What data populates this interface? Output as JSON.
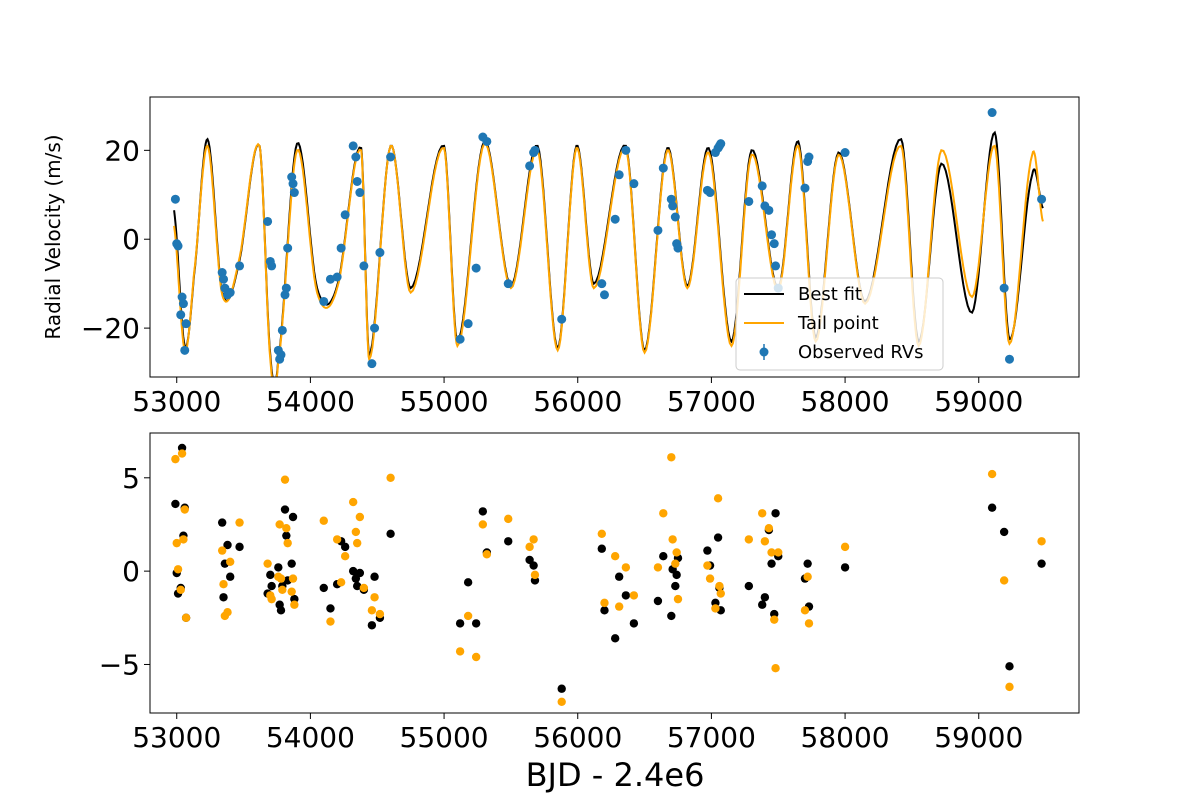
{
  "colors": {
    "best_fit": "#000000",
    "tail_point": "#ffa500",
    "observed": "#1f77b4",
    "residual_best": "#000000",
    "residual_tail": "#ffa500"
  },
  "chart_data": [
    {
      "type": "line",
      "panel": "top",
      "title": "",
      "xlabel": "",
      "ylabel": "Radial Velocity (m/s)",
      "xlim": [
        52800,
        59750
      ],
      "ylim": [
        -31,
        32
      ],
      "xticks": [
        53000,
        54000,
        55000,
        56000,
        57000,
        58000,
        59000
      ],
      "xtick_labels": [
        "53000",
        "54000",
        "55000",
        "56000",
        "57000",
        "58000",
        "59000"
      ],
      "yticks": [
        -20,
        0,
        20
      ],
      "ytick_labels": [
        "−20",
        "0",
        "20"
      ],
      "legend": {
        "position": "lower-right",
        "entries": [
          "Best fit",
          "Tail point",
          "Observed RVs"
        ]
      },
      "series": [
        {
          "name": "Best fit",
          "kind": "line",
          "x": [
            52980,
            53060,
            53130,
            53230,
            53340,
            53460,
            53620,
            53700,
            53760,
            53900,
            54050,
            54200,
            54380,
            54440,
            54600,
            54750,
            55000,
            55100,
            55300,
            55500,
            55700,
            55850,
            55990,
            56120,
            56360,
            56500,
            56670,
            56820,
            56980,
            57150,
            57300,
            57500,
            57650,
            57780,
            57950,
            58150,
            58420,
            58550,
            58720,
            58950,
            59120,
            59230,
            59400,
            59480
          ],
          "y": [
            6.5,
            -24,
            -8,
            22.5,
            -12,
            -6,
            21,
            -26,
            -27,
            21.5,
            -11,
            -10.5,
            20.5,
            -26,
            21,
            -11,
            21,
            -23,
            22,
            -10.5,
            21,
            -24.5,
            21,
            -10,
            21,
            -25,
            20.5,
            -10.5,
            20.5,
            -23,
            20,
            -11,
            22,
            -22,
            19.5,
            -14,
            22.5,
            -23,
            17,
            -16.5,
            24,
            -22.5,
            14.5,
            7
          ]
        },
        {
          "name": "Tail point",
          "kind": "line",
          "x": [
            52980,
            53060,
            53130,
            53230,
            53340,
            53460,
            53620,
            53700,
            53760,
            53900,
            54050,
            54200,
            54380,
            54440,
            54600,
            54750,
            55000,
            55100,
            55300,
            55500,
            55700,
            55850,
            55990,
            56120,
            56360,
            56500,
            56670,
            56820,
            56980,
            57150,
            57300,
            57500,
            57650,
            57780,
            57950,
            58150,
            58420,
            58550,
            58720,
            58950,
            59120,
            59230,
            59400,
            59480
          ],
          "y": [
            3,
            -25,
            -7.5,
            21,
            -12.5,
            -5.5,
            21,
            -27,
            -27.5,
            20,
            -12,
            -11,
            20,
            -27,
            21,
            -12,
            20.5,
            -24,
            21.5,
            -11,
            20,
            -25,
            20.5,
            -11,
            20.5,
            -25.5,
            20,
            -11,
            19.5,
            -24,
            19,
            -11.5,
            21,
            -23,
            19,
            -14.5,
            21,
            -24,
            20,
            -13,
            21,
            -23.5,
            19,
            4
          ]
        },
        {
          "name": "Observed RVs",
          "kind": "scatter",
          "x": [
            52990,
            53000,
            53010,
            53030,
            53040,
            53050,
            53060,
            53070,
            53340,
            53350,
            53360,
            53380,
            53400,
            53470,
            53680,
            53700,
            53710,
            53760,
            53770,
            53780,
            53790,
            53810,
            53820,
            53830,
            53860,
            53870,
            53880,
            54100,
            54150,
            54200,
            54230,
            54260,
            54320,
            54340,
            54350,
            54370,
            54400,
            54460,
            54480,
            54520,
            54600,
            55120,
            55180,
            55240,
            55290,
            55320,
            55480,
            55640,
            55670,
            55680,
            55880,
            56180,
            56200,
            56280,
            56310,
            56360,
            56420,
            56600,
            56640,
            56700,
            56710,
            56730,
            56740,
            56750,
            56970,
            56990,
            57030,
            57050,
            57060,
            57070,
            57280,
            57380,
            57400,
            57430,
            57450,
            57470,
            57480,
            57500,
            57700,
            57720,
            57730,
            58000,
            59100,
            59190,
            59230,
            59470
          ],
          "y": [
            9,
            -1,
            -1.5,
            -17,
            -13,
            -14.5,
            -25,
            -19,
            -7.5,
            -9,
            -11,
            -12.5,
            -12,
            -6,
            4,
            -5,
            -6,
            -25,
            -27,
            -26,
            -20.5,
            -12.5,
            -11,
            -2,
            14,
            12.5,
            10.5,
            -14,
            -9,
            -8.5,
            -2,
            5.5,
            21,
            18.5,
            13,
            10.5,
            -6,
            -28,
            -20,
            -3,
            18.5,
            -22.5,
            -19,
            -6.5,
            23,
            22,
            -10,
            16.5,
            19.5,
            20,
            -18,
            -10,
            -12.5,
            4.5,
            14.5,
            20,
            12.5,
            2,
            16,
            9,
            7.5,
            5,
            -1,
            -2,
            11,
            10.5,
            19.5,
            20.5,
            21,
            21.5,
            8.5,
            12,
            7.5,
            6.5,
            1,
            -1,
            -6,
            -11,
            11.5,
            17.5,
            18.5,
            19.5,
            28.5,
            -11,
            -27,
            9
          ]
        }
      ]
    },
    {
      "type": "scatter",
      "panel": "bottom",
      "title": "",
      "xlabel": "BJD - 2.4e6",
      "ylabel": "",
      "xlim": [
        52800,
        59750
      ],
      "ylim": [
        -7.6,
        7.4
      ],
      "xticks": [
        53000,
        54000,
        55000,
        56000,
        57000,
        58000,
        59000
      ],
      "xtick_labels": [
        "53000",
        "54000",
        "55000",
        "56000",
        "57000",
        "58000",
        "59000"
      ],
      "yticks": [
        -5,
        0,
        5
      ],
      "ytick_labels": [
        "−5",
        "0",
        "5"
      ],
      "series": [
        {
          "kind": "scatter",
          "color_key": "residual_best",
          "x": [
            52990,
            53000,
            53010,
            53030,
            53040,
            53050,
            53060,
            53070,
            53340,
            53350,
            53360,
            53380,
            53400,
            53470,
            53680,
            53700,
            53710,
            53760,
            53770,
            53780,
            53790,
            53810,
            53820,
            53830,
            53860,
            53870,
            53880,
            54100,
            54150,
            54200,
            54230,
            54260,
            54320,
            54340,
            54350,
            54370,
            54400,
            54460,
            54480,
            54520,
            54600,
            55120,
            55180,
            55240,
            55290,
            55320,
            55480,
            55640,
            55670,
            55680,
            55880,
            56180,
            56200,
            56280,
            56310,
            56360,
            56420,
            56600,
            56640,
            56700,
            56710,
            56730,
            56740,
            56750,
            56970,
            56990,
            57030,
            57050,
            57060,
            57070,
            57280,
            57380,
            57400,
            57430,
            57450,
            57470,
            57480,
            57500,
            57700,
            57720,
            57730,
            58000,
            59100,
            59190,
            59230,
            59470
          ],
          "y": [
            3.6,
            -0.1,
            -1.2,
            -0.9,
            6.6,
            1.9,
            3.4,
            -2.5,
            2.6,
            -1.4,
            0.4,
            1.4,
            -0.3,
            1.3,
            -1.2,
            -0.2,
            -0.8,
            0.2,
            -1.8,
            -2.1,
            -0.8,
            3.3,
            1.9,
            -0.5,
            0.4,
            2.9,
            -1.5,
            -0.9,
            -2.0,
            -0.7,
            1.6,
            1.3,
            0.0,
            -0.4,
            -0.8,
            -0.1,
            -1.0,
            -2.9,
            -0.3,
            -2.5,
            2.0,
            -2.8,
            -0.6,
            -2.8,
            3.2,
            1.0,
            1.6,
            0.6,
            0.3,
            -0.5,
            -6.3,
            1.2,
            -2.1,
            -3.6,
            -0.3,
            -1.3,
            -2.8,
            -1.6,
            0.8,
            -2.4,
            0.1,
            -0.8,
            -0.2,
            0.7,
            1.1,
            0.3,
            -1.7,
            1.8,
            -0.9,
            -2.1,
            -0.8,
            -1.8,
            -1.4,
            2.2,
            0.4,
            -2.3,
            3.1,
            0.8,
            -0.4,
            0.4,
            -1.9,
            0.2,
            3.4,
            2.1,
            -5.1,
            0.4
          ]
        },
        {
          "kind": "scatter",
          "color_key": "residual_tail",
          "x": [
            52990,
            53000,
            53010,
            53030,
            53040,
            53050,
            53060,
            53070,
            53340,
            53350,
            53360,
            53380,
            53400,
            53470,
            53680,
            53700,
            53710,
            53760,
            53770,
            53780,
            53790,
            53810,
            53820,
            53830,
            53860,
            53870,
            53880,
            54100,
            54150,
            54200,
            54230,
            54260,
            54320,
            54340,
            54350,
            54370,
            54400,
            54460,
            54480,
            54520,
            54600,
            55120,
            55180,
            55240,
            55290,
            55320,
            55480,
            55640,
            55670,
            55680,
            55880,
            56180,
            56200,
            56280,
            56310,
            56360,
            56420,
            56600,
            56640,
            56700,
            56710,
            56730,
            56740,
            56750,
            56970,
            56990,
            57030,
            57050,
            57060,
            57070,
            57280,
            57380,
            57400,
            57430,
            57450,
            57470,
            57480,
            57500,
            57700,
            57720,
            57730,
            58000,
            59100,
            59190,
            59230,
            59470
          ],
          "y": [
            6.0,
            1.5,
            0.1,
            -1.0,
            6.3,
            1.7,
            3.3,
            -2.5,
            1.1,
            -0.7,
            -2.4,
            -2.2,
            0.5,
            2.6,
            0.4,
            -1.3,
            -1.5,
            -0.3,
            2.5,
            -0.4,
            -1.0,
            4.9,
            2.3,
            1.5,
            -1.1,
            -0.4,
            -1.8,
            2.7,
            -2.7,
            1.7,
            -0.6,
            0.8,
            3.7,
            2.1,
            1.5,
            2.9,
            -0.9,
            -2.1,
            -1.4,
            -2.3,
            5.0,
            -4.3,
            -2.4,
            -4.6,
            2.5,
            0.9,
            2.8,
            1.3,
            1.7,
            -0.2,
            -7.0,
            2.0,
            -1.7,
            0.8,
            -1.9,
            0.2,
            -1.3,
            0.2,
            3.1,
            6.1,
            1.7,
            0.4,
            1.0,
            -1.5,
            0.3,
            -0.4,
            -2.0,
            3.9,
            -0.8,
            -1.2,
            1.7,
            3.1,
            1.6,
            2.3,
            1.0,
            -2.6,
            -5.2,
            1.0,
            -2.1,
            -0.3,
            -2.8,
            1.3,
            5.2,
            -0.5,
            -6.2,
            1.6
          ]
        }
      ]
    }
  ]
}
